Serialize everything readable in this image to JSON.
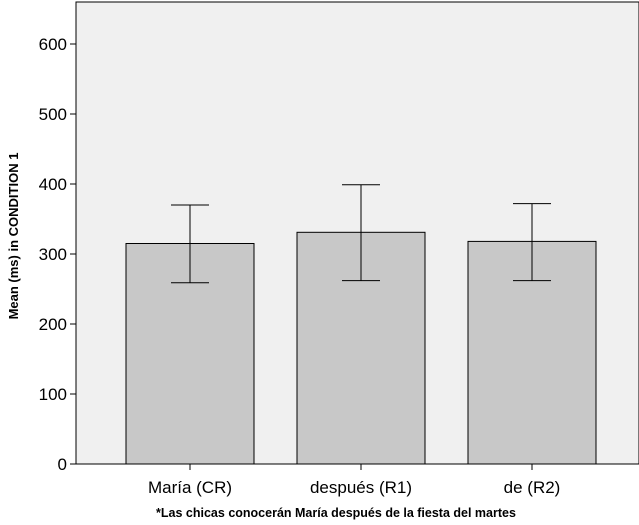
{
  "chart_data": {
    "type": "bar",
    "categories": [
      "María (CR)",
      "después (R1)",
      "de (R2)"
    ],
    "values": [
      315,
      331,
      318
    ],
    "error_bars": {
      "lower": [
        259,
        262,
        262
      ],
      "upper": [
        370,
        399,
        372
      ]
    },
    "title": "",
    "xlabel": "*Las chicas conocerán María después de la fiesta del martes",
    "ylabel": "Mean (ms) in CONDITION 1",
    "ylim": [
      0,
      660
    ],
    "yticks": [
      0,
      100,
      200,
      300,
      400,
      500,
      600
    ],
    "grid": false,
    "legend": "none",
    "colors": {
      "plot_background": "#f0f0f0",
      "bar_fill": "#c8c8c8",
      "bar_stroke": "#000000",
      "axis": "#000000"
    }
  }
}
